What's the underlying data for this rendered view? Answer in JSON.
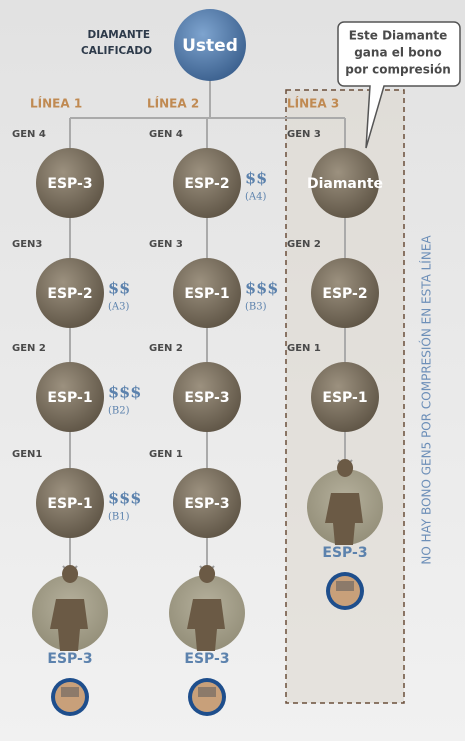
{
  "header": {
    "qualifier": [
      "DIAMANTE",
      "CALIFICADO"
    ],
    "root": "Usted"
  },
  "callout": [
    "Este Diamante",
    "gana el bono",
    "por compresión"
  ],
  "lines": [
    {
      "label": "LÍNEA 1",
      "nodes": [
        {
          "gen": "GEN 4",
          "label": "ESP-3"
        },
        {
          "gen": "GEN3",
          "label": "ESP-2",
          "bonus": "$$",
          "code": "(A3)"
        },
        {
          "gen": "GEN 2",
          "label": "ESP-1",
          "bonus": "$$$",
          "code": "(B2)"
        },
        {
          "gen": "GEN1",
          "label": "ESP-1",
          "bonus": "$$$",
          "code": "(B1)"
        }
      ],
      "end": "ESP-3"
    },
    {
      "label": "LÍNEA 2",
      "nodes": [
        {
          "gen": "GEN 4",
          "label": "ESP-2",
          "bonus": "$$",
          "code": "(A4)"
        },
        {
          "gen": "GEN 3",
          "label": "ESP-1",
          "bonus": "$$$",
          "code": "(B3)"
        },
        {
          "gen": "GEN 2",
          "label": "ESP-3"
        },
        {
          "gen": "GEN 1",
          "label": "ESP-3"
        }
      ],
      "end": "ESP-3"
    },
    {
      "label": "LÍNEA 3",
      "nodes": [
        {
          "gen": "GEN 3",
          "label": "Diamante"
        },
        {
          "gen": "GEN 2",
          "label": "ESP-2"
        },
        {
          "gen": "GEN 1",
          "label": "ESP-1"
        }
      ],
      "end": "ESP-3"
    }
  ],
  "side_note": "NO HAY BONO GEN5 POR COMPRESIÓN EN ESTA LÍNEA"
}
